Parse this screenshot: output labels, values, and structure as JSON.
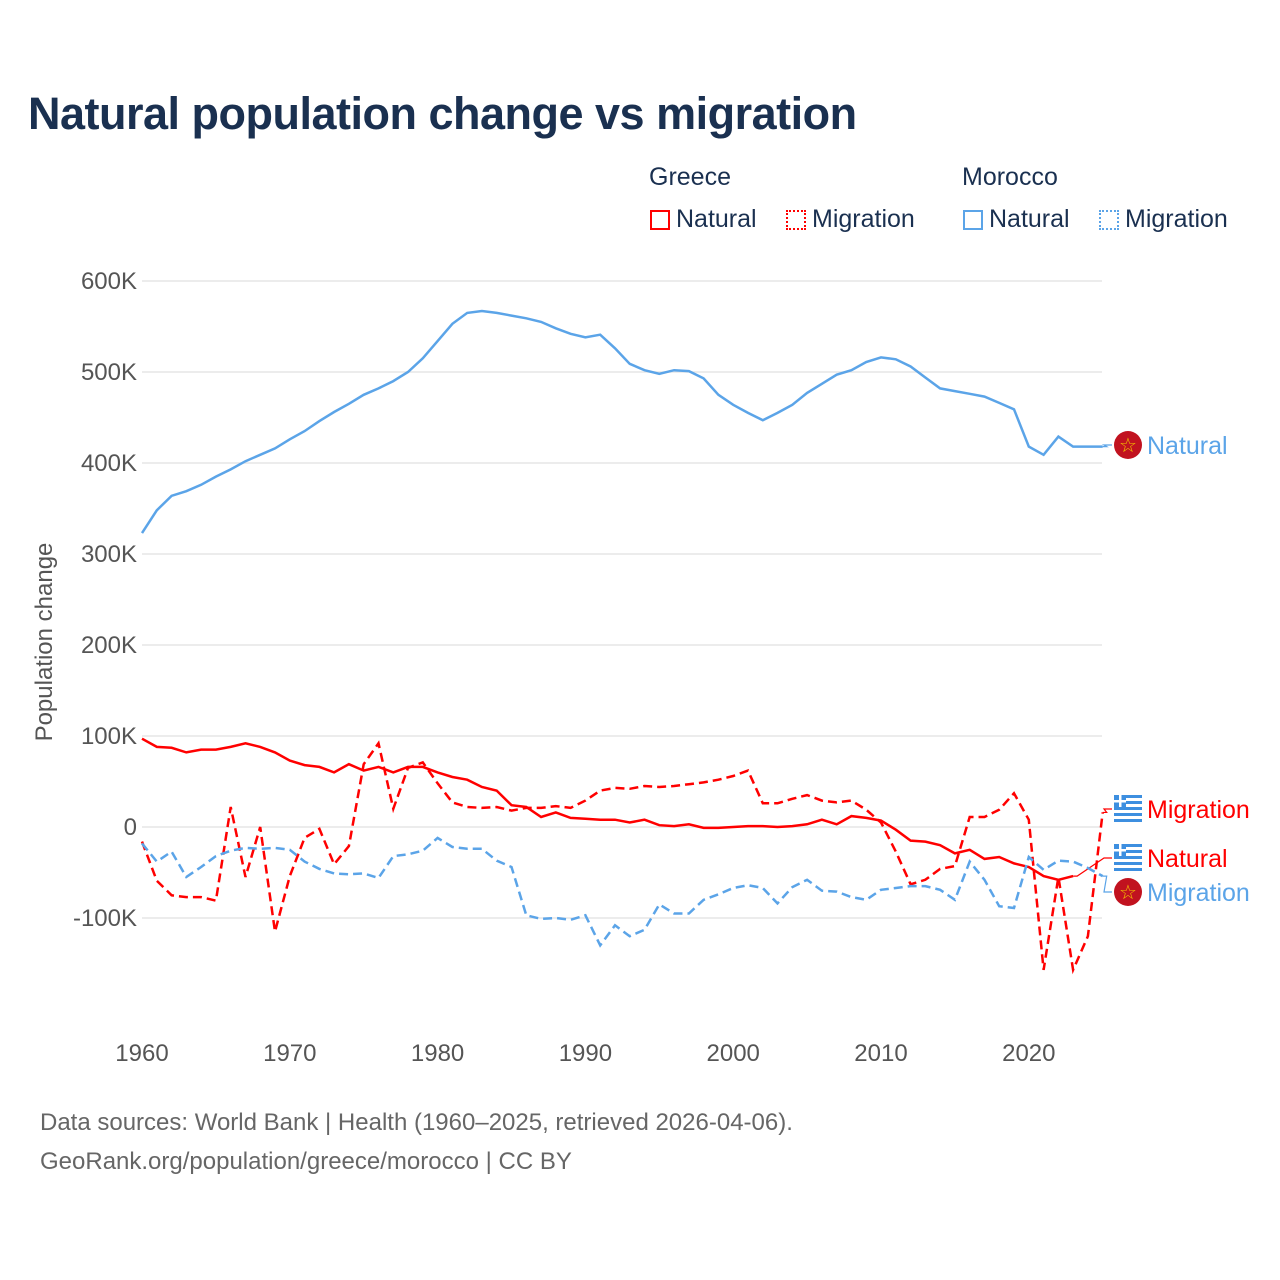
{
  "title": "Natural population change vs migration",
  "legend": {
    "groups": [
      {
        "name": "Greece",
        "color": "#ff0000",
        "items": [
          "Natural",
          "Migration"
        ]
      },
      {
        "name": "Morocco",
        "color": "#5ba4e8",
        "items": [
          "Natural",
          "Migration"
        ]
      }
    ]
  },
  "footer": {
    "line1": "Data sources: World Bank | Health (1960–2025, retrieved 2026-04-06).",
    "line2": "GeoRank.org/population/greece/morocco | CC BY"
  },
  "chart_data": {
    "type": "line",
    "title": "Natural population change vs migration",
    "ylabel": "Population change",
    "xlabel": "",
    "ylim": [
      -200000,
      600000
    ],
    "xlim": [
      1960,
      2025
    ],
    "y_ticks": [
      {
        "v": 600,
        "label": "600K"
      },
      {
        "v": 500,
        "label": "500K"
      },
      {
        "v": 400,
        "label": "400K"
      },
      {
        "v": 300,
        "label": "300K"
      },
      {
        "v": 200,
        "label": "200K"
      },
      {
        "v": 100,
        "label": "100K"
      },
      {
        "v": 0,
        "label": "0"
      },
      {
        "v": -100,
        "label": "-100K"
      }
    ],
    "x_ticks": [
      1960,
      1970,
      1980,
      1990,
      2000,
      2010,
      2020
    ],
    "start_year": 1960,
    "units": "thousands",
    "series": [
      {
        "name": "Morocco Natural",
        "label": "Natural",
        "color": "#5ba4e8",
        "dash": false,
        "flag": "morocco",
        "values": [
          323,
          348,
          364,
          369,
          376,
          385,
          393,
          402,
          409,
          416,
          426,
          435,
          446,
          456,
          465,
          475,
          482,
          490,
          500,
          515,
          534,
          553,
          565,
          567,
          565,
          562,
          559,
          555,
          548,
          542,
          538,
          541,
          526,
          509,
          502,
          498,
          502,
          501,
          493,
          475,
          464,
          455,
          447,
          455,
          464,
          477,
          487,
          497,
          502,
          511,
          516,
          514,
          506,
          494,
          482,
          479,
          476,
          473,
          466,
          459,
          418,
          409,
          429,
          418,
          418,
          418
        ]
      },
      {
        "name": "Greece Natural",
        "label": "Natural",
        "color": "#ff0000",
        "dash": false,
        "flag": "greece",
        "values": [
          97,
          88,
          87,
          82,
          85,
          85,
          88,
          92,
          88,
          82,
          73,
          68,
          66,
          60,
          69,
          62,
          66,
          60,
          66,
          66,
          60,
          55,
          52,
          44,
          40,
          24,
          22,
          11,
          16,
          10,
          9,
          8,
          8,
          5,
          8,
          2,
          1,
          3,
          -1,
          -1,
          0,
          1,
          1,
          0,
          1,
          3,
          8,
          3,
          12,
          10,
          7,
          -3,
          -15,
          -16,
          -20,
          -29,
          -25,
          -35,
          -33,
          -40,
          -44,
          -54,
          -58,
          -54,
          null,
          null
        ]
      },
      {
        "name": "Greece Migration",
        "label": "Migration",
        "color": "#ff0000",
        "dash": true,
        "flag": "greece",
        "values": [
          -16,
          -59,
          -75,
          -77,
          -77,
          -81,
          22,
          -55,
          0,
          -115,
          -54,
          -12,
          -2,
          -41,
          -21,
          69,
          92,
          20,
          65,
          71,
          48,
          27,
          22,
          21,
          22,
          18,
          21,
          21,
          23,
          21,
          29,
          40,
          43,
          42,
          45,
          44,
          45,
          47,
          49,
          52,
          56,
          62,
          26,
          26,
          31,
          35,
          29,
          27,
          29,
          19,
          5,
          -27,
          -63,
          -58,
          -46,
          -43,
          11,
          11,
          19,
          37,
          8,
          -157,
          -55,
          -157,
          -120,
          16
        ]
      },
      {
        "name": "Morocco Migration",
        "label": "Migration",
        "color": "#5ba4e8",
        "dash": true,
        "flag": "morocco",
        "values": [
          -18,
          -38,
          -27,
          -55,
          -44,
          -32,
          -26,
          -23,
          -24,
          -23,
          -25,
          -38,
          -46,
          -51,
          -52,
          -51,
          -56,
          -32,
          -30,
          -26,
          -12,
          -22,
          -24,
          -24,
          -37,
          -44,
          -97,
          -101,
          -100,
          -102,
          -97,
          -130,
          -108,
          -120,
          -113,
          -85,
          -95,
          -95,
          -80,
          -74,
          -67,
          -64,
          -67,
          -84,
          -66,
          -58,
          -70,
          -71,
          -77,
          -80,
          -69,
          -67,
          -65,
          -65,
          -69,
          -80,
          -38,
          -58,
          -87,
          -89,
          -33,
          -47,
          -37,
          -38,
          -45,
          -54
        ]
      }
    ]
  }
}
